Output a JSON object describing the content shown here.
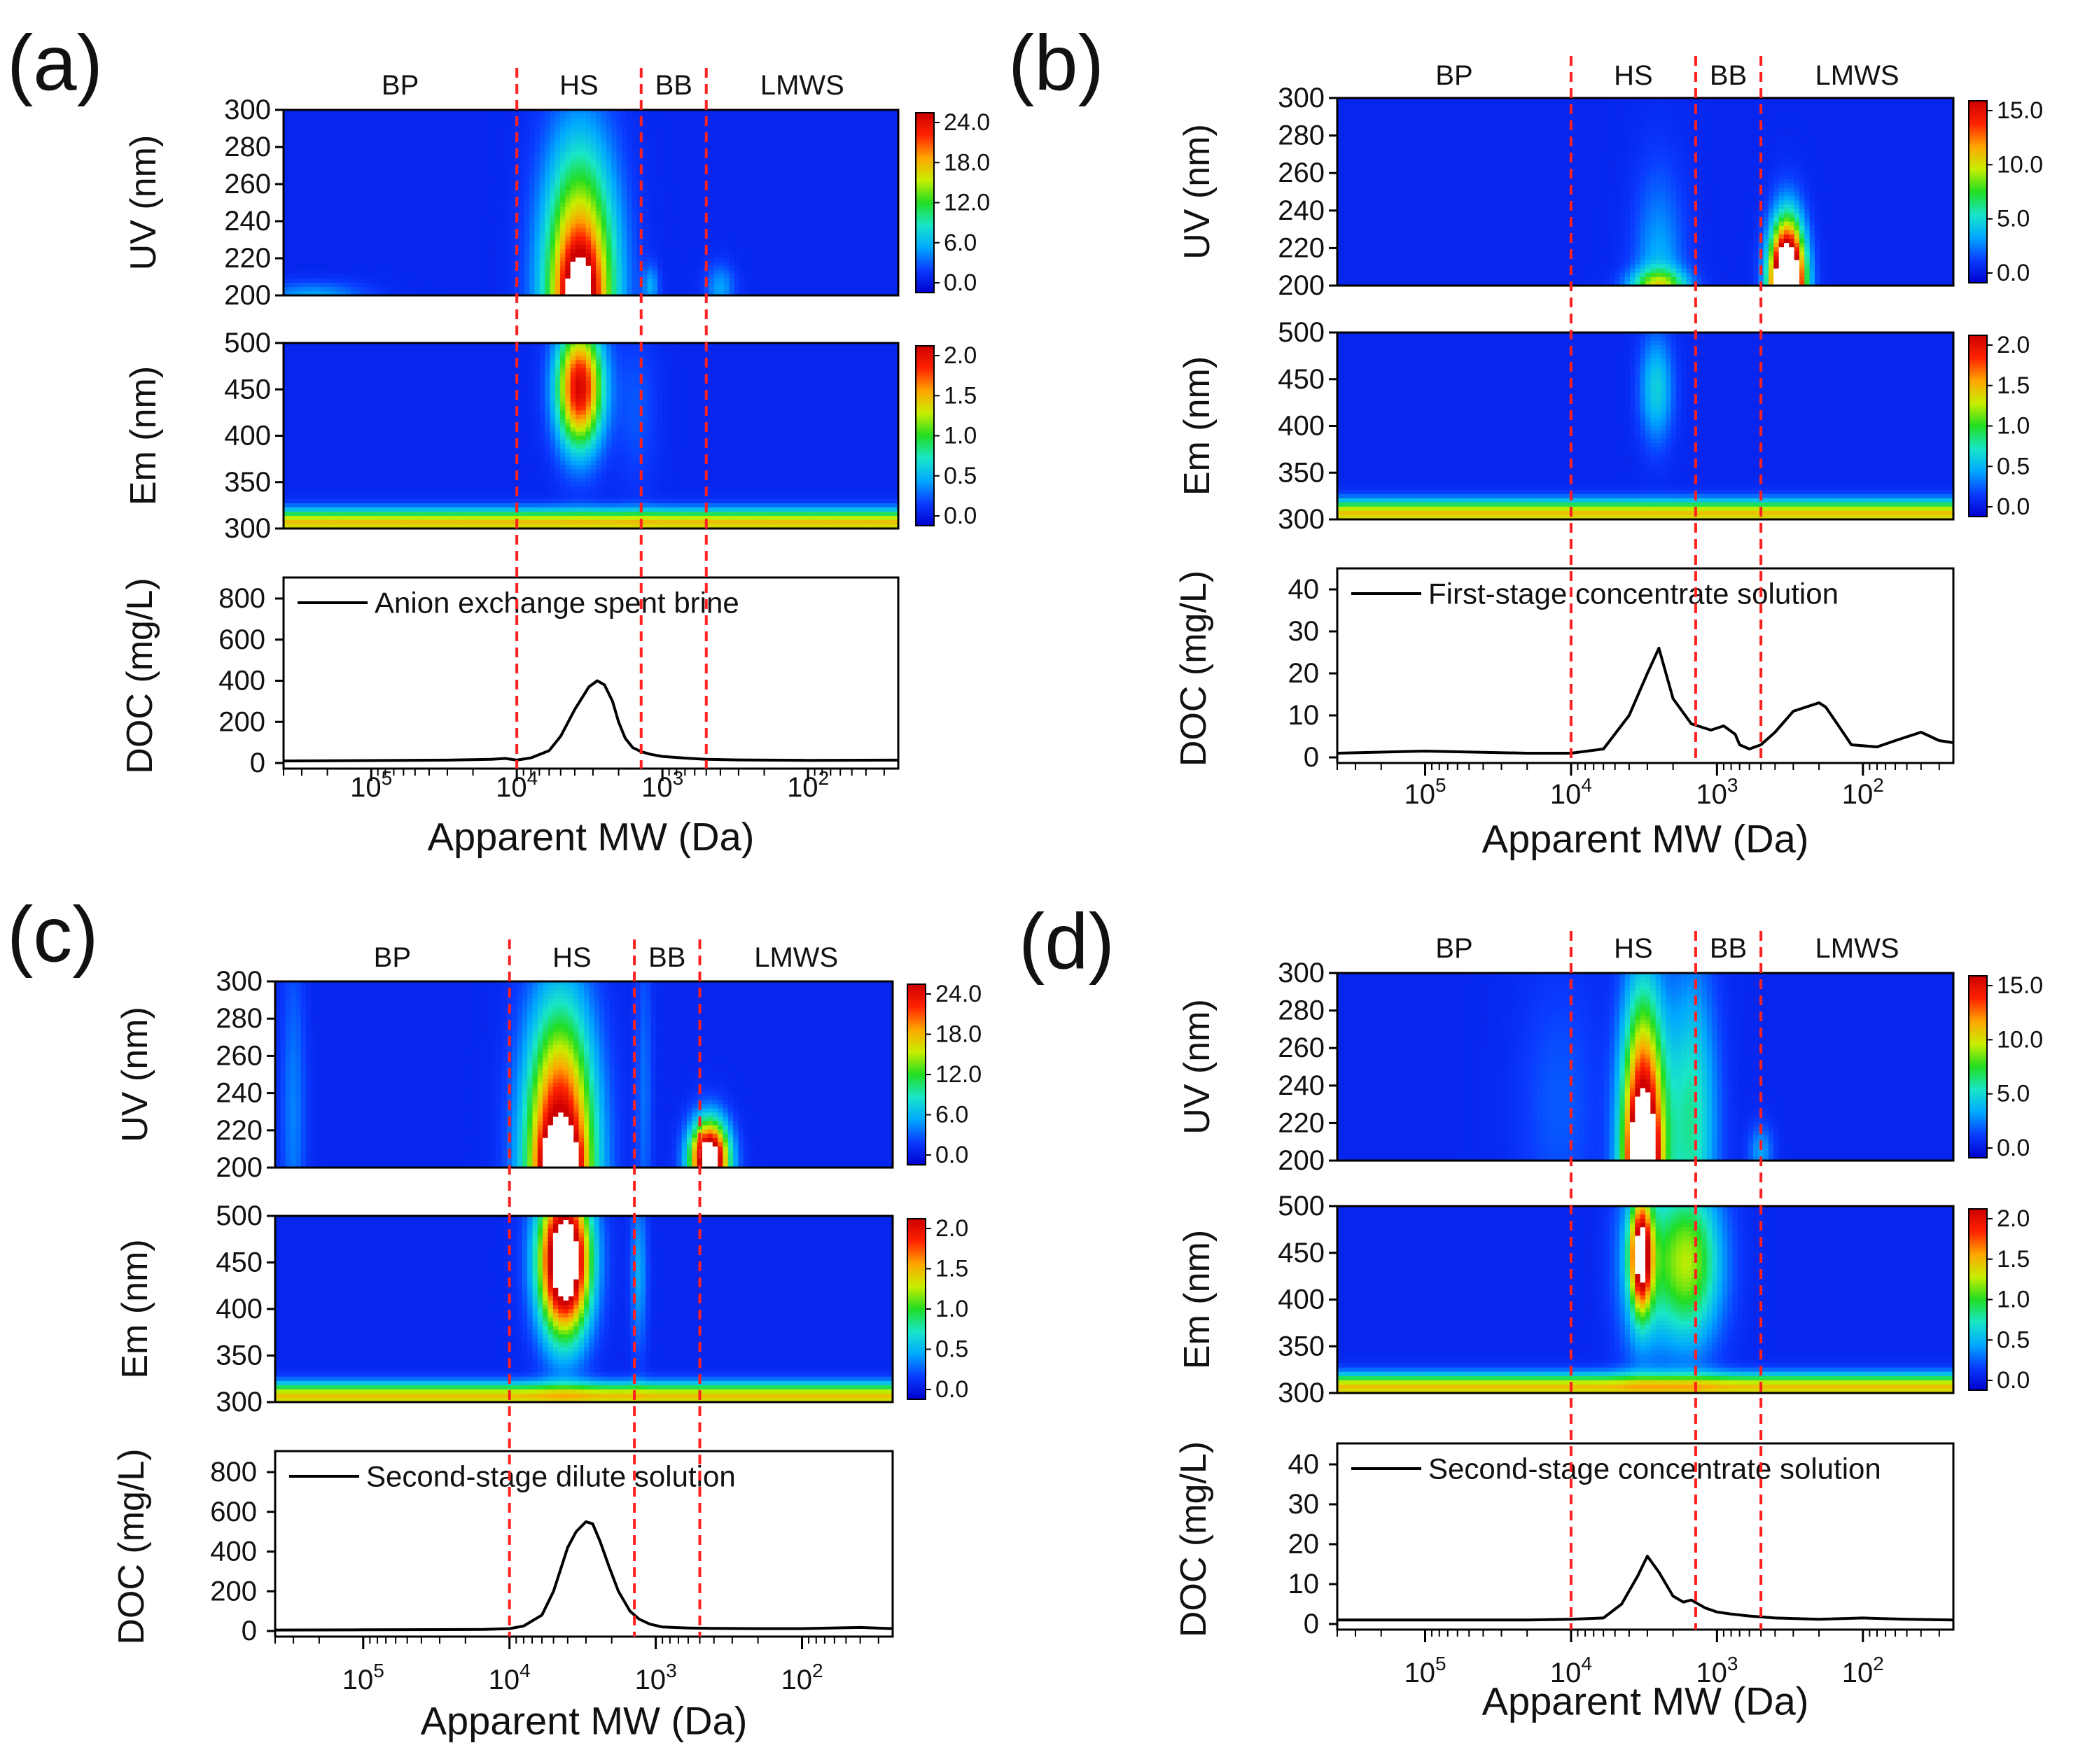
{
  "figure": {
    "panel_letters": [
      "(a)",
      "(b)",
      "(c)",
      "(d)"
    ]
  },
  "colors": {
    "divider": "#ff2020",
    "colormap": [
      "#0000cc",
      "#0a3cff",
      "#00a8ff",
      "#19e6c8",
      "#22dd22",
      "#c8ee00",
      "#ffa500",
      "#ff2200",
      "#cc0000"
    ],
    "overflow": "#ffffff",
    "doc_line": "#000000"
  },
  "chart_data": [
    {
      "panel": "(a)",
      "type": "heatmap",
      "x_axis": {
        "label": "Apparent MW (Da)",
        "scale": "log",
        "reversed": true,
        "range": [
          400000,
          24
        ],
        "tick_labels": [
          "10^5",
          "10^4",
          "10^3",
          "10^2"
        ],
        "tick_values": [
          100000,
          10000,
          1000,
          100
        ]
      },
      "fraction_labels": [
        "BP",
        "HS",
        "BB",
        "LMWS"
      ],
      "fraction_boundaries_Da": [
        10000,
        1400,
        500
      ],
      "uv": {
        "ylabel": "UV (nm)",
        "ylim": [
          200,
          300
        ],
        "yticks": [
          300,
          280,
          260,
          240,
          220,
          200
        ],
        "colorbar_ticks": [
          "24.0",
          "18.0",
          "12.0",
          "6.0",
          "0.0"
        ],
        "colorbar_max": 24,
        "blobs": [
          {
            "mw": 3700,
            "y0": 200,
            "sx": 0.17,
            "sy": 52,
            "amp": 21
          },
          {
            "mw": 3700,
            "y0": 200,
            "sx": 0.09,
            "sy": 18,
            "amp": 8
          },
          {
            "mw": 250000,
            "y0": 200,
            "sx": 0.25,
            "sy": 5,
            "amp": 4
          },
          {
            "mw": 1200,
            "y0": 205,
            "sx": 0.04,
            "sy": 8,
            "amp": 4
          },
          {
            "mw": 400,
            "y0": 204,
            "sx": 0.07,
            "sy": 9,
            "amp": 4
          }
        ]
      },
      "em": {
        "ylabel": "Em (nm)",
        "ylim": [
          300,
          500
        ],
        "yticks": [
          500,
          450,
          400,
          350,
          300
        ],
        "colorbar_ticks": [
          "2.0",
          "1.5",
          "1.0",
          "0.5",
          "0.0"
        ],
        "colorbar_max": 2,
        "blobs": [
          {
            "mw": 3700,
            "y0": 452,
            "sx": 0.11,
            "sy": 45,
            "amp": 1.8
          },
          {
            "mw": 1500,
            "y0": 430,
            "sx": 0.1,
            "sy": 60,
            "amp": 0.15
          }
        ]
      },
      "doc": {
        "ylabel": "DOC (mg/L)",
        "ylim": [
          0,
          800
        ],
        "yticks": [
          0,
          200,
          400,
          600,
          800
        ],
        "legend": "Anion exchange spent brine",
        "x": [
          400000,
          100000,
          30000,
          15000,
          12000,
          10000,
          8000,
          6000,
          5000,
          4000,
          3200,
          2800,
          2500,
          2200,
          2000,
          1800,
          1600,
          1400,
          1200,
          1000,
          700,
          500,
          300,
          100,
          24
        ],
        "y": [
          10,
          12,
          14,
          18,
          22,
          14,
          25,
          60,
          130,
          260,
          370,
          400,
          380,
          300,
          200,
          120,
          75,
          55,
          42,
          32,
          24,
          18,
          15,
          13,
          14
        ]
      }
    },
    {
      "panel": "(b)",
      "type": "heatmap",
      "x_axis": {
        "label": "Apparent MW (Da)",
        "scale": "log",
        "reversed": true,
        "range": [
          400000,
          24
        ],
        "tick_labels": [
          "10^5",
          "10^4",
          "10^3",
          "10^2"
        ],
        "tick_values": [
          100000,
          10000,
          1000,
          100
        ]
      },
      "fraction_labels": [
        "BP",
        "HS",
        "BB",
        "LMWS"
      ],
      "fraction_boundaries_Da": [
        10000,
        1400,
        500
      ],
      "uv": {
        "ylabel": "UV (nm)",
        "ylim": [
          200,
          300
        ],
        "yticks": [
          300,
          280,
          260,
          240,
          220,
          200
        ],
        "colorbar_ticks": [
          "15.0",
          "10.0",
          "5.0",
          "0.0"
        ],
        "colorbar_max": 15,
        "blobs": [
          {
            "mw": 2500,
            "y0": 200,
            "sx": 0.12,
            "sy": 40,
            "amp": 3
          },
          {
            "mw": 2500,
            "y0": 200,
            "sx": 0.14,
            "sy": 6,
            "amp": 6
          },
          {
            "mw": 330,
            "y0": 200,
            "sx": 0.08,
            "sy": 22,
            "amp": 25
          }
        ]
      },
      "em": {
        "ylabel": "Em (nm)",
        "ylim": [
          300,
          500
        ],
        "yticks": [
          500,
          450,
          400,
          350,
          300
        ],
        "colorbar_ticks": [
          "2.0",
          "1.5",
          "1.0",
          "0.5",
          "0.0"
        ],
        "colorbar_max": 2,
        "blobs": [
          {
            "mw": 2600,
            "y0": 440,
            "sx": 0.08,
            "sy": 40,
            "amp": 0.5
          }
        ]
      },
      "doc": {
        "ylabel": "DOC (mg/L)",
        "ylim": [
          0,
          40
        ],
        "yticks": [
          0,
          10,
          20,
          30,
          40
        ],
        "legend": "First-stage concentrate solution",
        "x": [
          400000,
          100000,
          20000,
          10000,
          6000,
          4000,
          3000,
          2500,
          2000,
          1500,
          1100,
          900,
          750,
          700,
          600,
          500,
          400,
          300,
          200,
          180,
          150,
          120,
          80,
          60,
          40,
          30,
          24
        ],
        "y": [
          1,
          1.5,
          1,
          1,
          2,
          10,
          20,
          26,
          14,
          8,
          6.5,
          7.5,
          5.5,
          3,
          2,
          3,
          6,
          11,
          13,
          12,
          8,
          3,
          2.5,
          4,
          6,
          4,
          3.5
        ]
      }
    },
    {
      "panel": "(c)",
      "type": "heatmap",
      "x_axis": {
        "label": "Apparent MW (Da)",
        "scale": "log",
        "reversed": true,
        "range": [
          400000,
          24
        ],
        "tick_labels": [
          "10^5",
          "10^4",
          "10^3",
          "10^2"
        ],
        "tick_values": [
          100000,
          10000,
          1000,
          100
        ]
      },
      "fraction_labels": [
        "BP",
        "HS",
        "BB",
        "LMWS"
      ],
      "fraction_boundaries_Da": [
        10000,
        1400,
        500
      ],
      "uv": {
        "ylabel": "UV (nm)",
        "ylim": [
          200,
          300
        ],
        "yticks": [
          300,
          280,
          260,
          240,
          220,
          200
        ],
        "colorbar_ticks": [
          "24.0",
          "18.0",
          "12.0",
          "6.0",
          "0.0"
        ],
        "colorbar_max": 24,
        "blobs": [
          {
            "mw": 4500,
            "y0": 200,
            "sx": 0.16,
            "sy": 55,
            "amp": 26
          },
          {
            "mw": 4500,
            "y0": 200,
            "sx": 0.08,
            "sy": 12,
            "amp": 15
          },
          {
            "mw": 430,
            "y0": 204,
            "sx": 0.09,
            "sy": 14,
            "amp": 30
          },
          {
            "mw": 300000,
            "y0": 230,
            "sx": 0.06,
            "sy": 60,
            "amp": 3
          },
          {
            "mw": 1200,
            "y0": 240,
            "sx": 0.04,
            "sy": 60,
            "amp": 2.5
          }
        ]
      },
      "em": {
        "ylabel": "Em (nm)",
        "ylim": [
          300,
          500
        ],
        "yticks": [
          500,
          450,
          400,
          350,
          300
        ],
        "colorbar_ticks": [
          "2.0",
          "1.5",
          "1.0",
          "0.5",
          "0.0"
        ],
        "colorbar_max": 2,
        "blobs": [
          {
            "mw": 4200,
            "y0": 452,
            "sx": 0.12,
            "sy": 55,
            "amp": 2.6
          },
          {
            "mw": 1300,
            "y0": 440,
            "sx": 0.04,
            "sy": 60,
            "amp": 0.35
          }
        ]
      },
      "doc": {
        "ylabel": "DOC (mg/L)",
        "ylim": [
          0,
          800
        ],
        "yticks": [
          0,
          200,
          400,
          600,
          800
        ],
        "legend": "Second-stage dilute solution",
        "x": [
          400000,
          100000,
          30000,
          15000,
          10000,
          8000,
          6000,
          5000,
          4000,
          3500,
          3000,
          2700,
          2400,
          2100,
          1800,
          1500,
          1300,
          1100,
          900,
          600,
          400,
          200,
          100,
          40,
          24
        ],
        "y": [
          5,
          6,
          7,
          8,
          12,
          25,
          80,
          200,
          420,
          500,
          550,
          540,
          450,
          330,
          200,
          100,
          60,
          35,
          20,
          15,
          13,
          12,
          12,
          18,
          12
        ]
      }
    },
    {
      "panel": "(d)",
      "type": "heatmap",
      "x_axis": {
        "label": "Apparent MW (Da)",
        "scale": "log",
        "reversed": true,
        "range": [
          400000,
          24
        ],
        "tick_labels": [
          "10^5",
          "10^4",
          "10^3",
          "10^2"
        ],
        "tick_values": [
          100000,
          10000,
          1000,
          100
        ]
      },
      "fraction_labels": [
        "BP",
        "HS",
        "BB",
        "LMWS"
      ],
      "fraction_boundaries_Da": [
        10000,
        1400,
        500
      ],
      "uv": {
        "ylabel": "UV (nm)",
        "ylim": [
          200,
          300
        ],
        "yticks": [
          300,
          280,
          260,
          240,
          220,
          200
        ],
        "colorbar_ticks": [
          "15.0",
          "10.0",
          "5.0",
          "0.0"
        ],
        "colorbar_max": 15,
        "blobs": [
          {
            "mw": 3200,
            "y0": 200,
            "sx": 0.1,
            "sy": 55,
            "amp": 18
          },
          {
            "mw": 3200,
            "y0": 200,
            "sx": 0.05,
            "sy": 15,
            "amp": 12
          },
          {
            "mw": 1500,
            "y0": 220,
            "sx": 0.12,
            "sy": 55,
            "amp": 5
          },
          {
            "mw": 500,
            "y0": 205,
            "sx": 0.06,
            "sy": 10,
            "amp": 2.5
          },
          {
            "mw": 12000,
            "y0": 230,
            "sx": 0.2,
            "sy": 50,
            "amp": 1.2
          }
        ]
      },
      "em": {
        "ylabel": "Em (nm)",
        "ylim": [
          300,
          500
        ],
        "yticks": [
          500,
          450,
          400,
          350,
          300
        ],
        "colorbar_ticks": [
          "2.0",
          "1.5",
          "1.0",
          "0.5",
          "0.0"
        ],
        "colorbar_max": 2,
        "blobs": [
          {
            "mw": 3300,
            "y0": 448,
            "sx": 0.05,
            "sy": 40,
            "amp": 1.8
          },
          {
            "mw": 1600,
            "y0": 440,
            "sx": 0.16,
            "sy": 60,
            "amp": 1.05
          },
          {
            "mw": 3300,
            "y0": 440,
            "sx": 0.12,
            "sy": 70,
            "amp": 0.5
          }
        ]
      },
      "doc": {
        "ylabel": "DOC (mg/L)",
        "ylim": [
          0,
          40
        ],
        "yticks": [
          0,
          10,
          20,
          30,
          40
        ],
        "legend": "Second-stage concentrate solution",
        "x": [
          400000,
          100000,
          20000,
          10000,
          6000,
          4500,
          3500,
          3000,
          2500,
          2000,
          1700,
          1500,
          1200,
          1000,
          800,
          600,
          400,
          200,
          100,
          50,
          24
        ],
        "y": [
          1,
          1,
          1,
          1.2,
          1.5,
          5,
          12,
          17,
          13,
          7,
          5.5,
          6,
          4,
          3,
          2.5,
          2,
          1.5,
          1.2,
          1.5,
          1.2,
          1
        ]
      }
    }
  ]
}
